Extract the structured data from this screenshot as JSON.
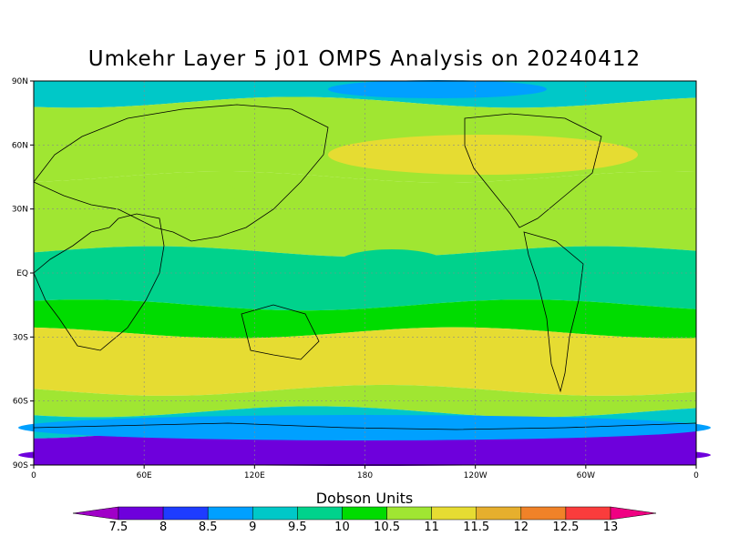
{
  "title": "Umkehr Layer 5 j01 OMPS Analysis on 20240412",
  "chart_data": {
    "type": "heatmap",
    "title": "Umkehr Layer 5 j01 OMPS Analysis on 20240412",
    "units": "Dobson Units",
    "xlabel": "",
    "ylabel": "",
    "x_ticks": [
      "0",
      "60E",
      "120E",
      "180",
      "120W",
      "60W",
      "0"
    ],
    "y_ticks": [
      "90N",
      "60N",
      "30N",
      "EQ",
      "30S",
      "60S",
      "90S"
    ],
    "xlim": [
      0,
      360
    ],
    "ylim": [
      -90,
      90
    ],
    "grid": true,
    "levels": [
      "7.5",
      "8",
      "8.5",
      "9",
      "9.5",
      "10",
      "10.5",
      "11",
      "11.5",
      "12",
      "12.5",
      "13"
    ],
    "colors": [
      "#a000c8",
      "#6e00dc",
      "#1e3cff",
      "#00a0ff",
      "#00c8c8",
      "#00d28c",
      "#00dc00",
      "#a0e632",
      "#e6dc32",
      "#e6af2d",
      "#f08228",
      "#fa3c3c",
      "#f00082"
    ],
    "bands": [
      {
        "lat_range": [
          80,
          90
        ],
        "value": "9"
      },
      {
        "lat_range": [
          45,
          80
        ],
        "value": "10.5"
      },
      {
        "lat_range": [
          10,
          45
        ],
        "value": "10.5"
      },
      {
        "lat_range": [
          -15,
          10
        ],
        "value": "9.5"
      },
      {
        "lat_range": [
          -28,
          -15
        ],
        "value": "10"
      },
      {
        "lat_range": [
          -55,
          -28
        ],
        "value": "11"
      },
      {
        "lat_range": [
          -65,
          -55
        ],
        "value": "10.5"
      },
      {
        "lat_range": [
          -75,
          -65
        ],
        "value": "9"
      },
      {
        "lat_range": [
          -90,
          -75
        ],
        "value": "7.5"
      }
    ]
  }
}
